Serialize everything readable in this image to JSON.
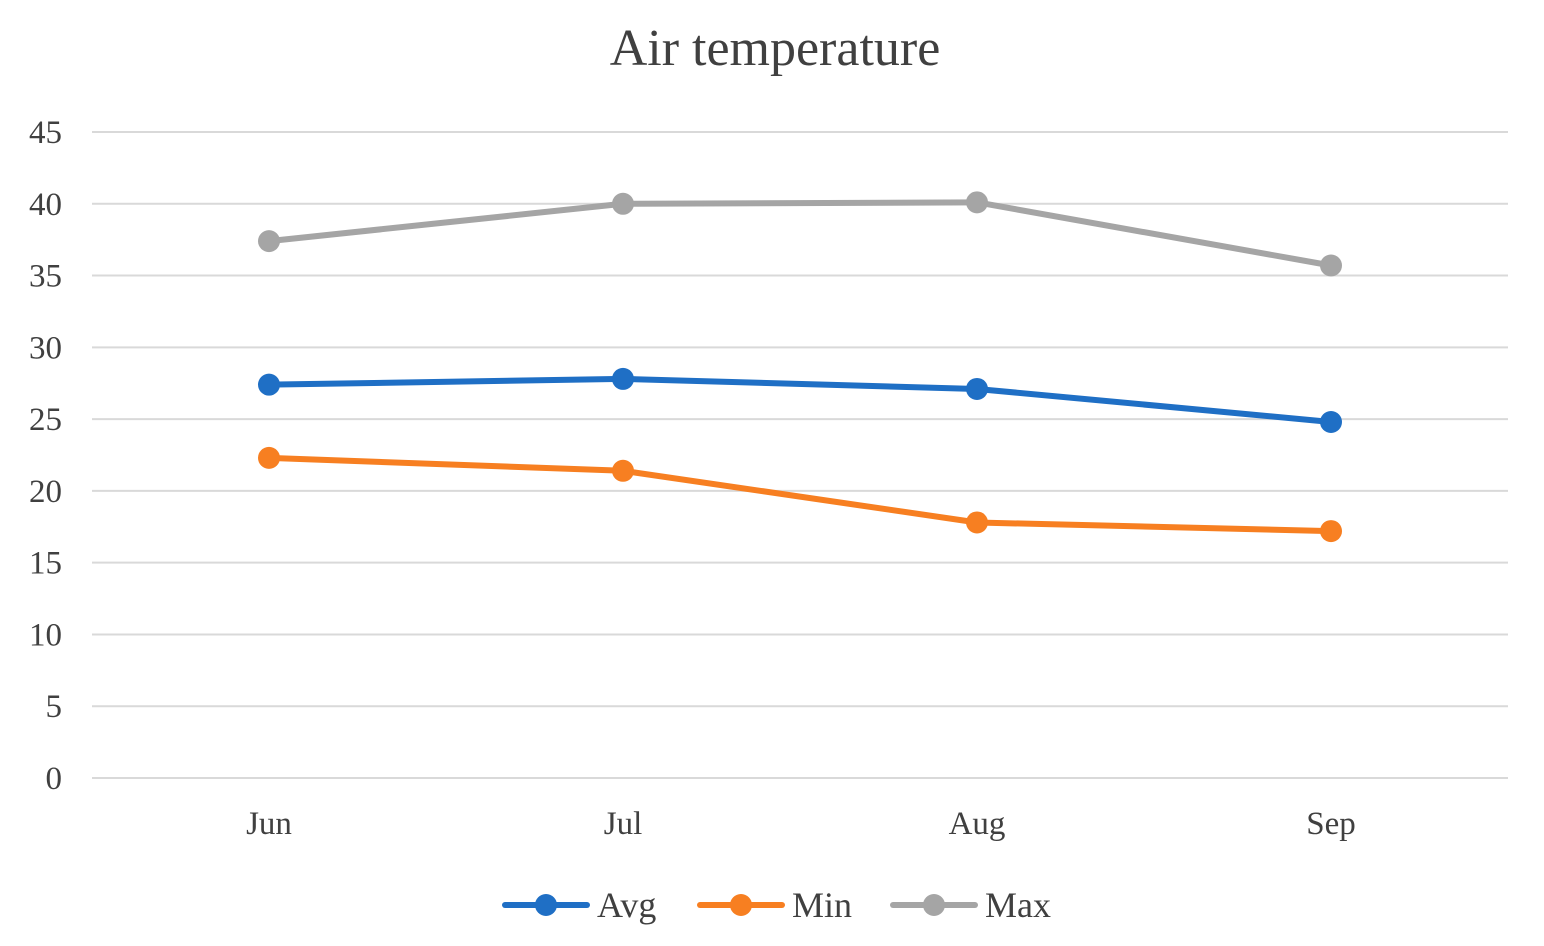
{
  "chart_data": {
    "type": "line",
    "title": "Air temperature",
    "xlabel": "",
    "ylabel": "",
    "categories": [
      "Jun",
      "Jul",
      "Aug",
      "Sep"
    ],
    "ylim": [
      0,
      45
    ],
    "yticks": [
      0,
      5,
      10,
      15,
      20,
      25,
      30,
      35,
      40,
      45
    ],
    "grid": true,
    "legend_position": "bottom",
    "series": [
      {
        "name": "Avg",
        "color": "#1f6fc5",
        "values": [
          27.4,
          27.8,
          27.1,
          24.8
        ]
      },
      {
        "name": "Min",
        "color": "#f77f21",
        "values": [
          22.3,
          21.4,
          17.8,
          17.2
        ]
      },
      {
        "name": "Max",
        "color": "#a5a5a5",
        "values": [
          37.4,
          40.0,
          40.1,
          35.7
        ]
      }
    ]
  }
}
